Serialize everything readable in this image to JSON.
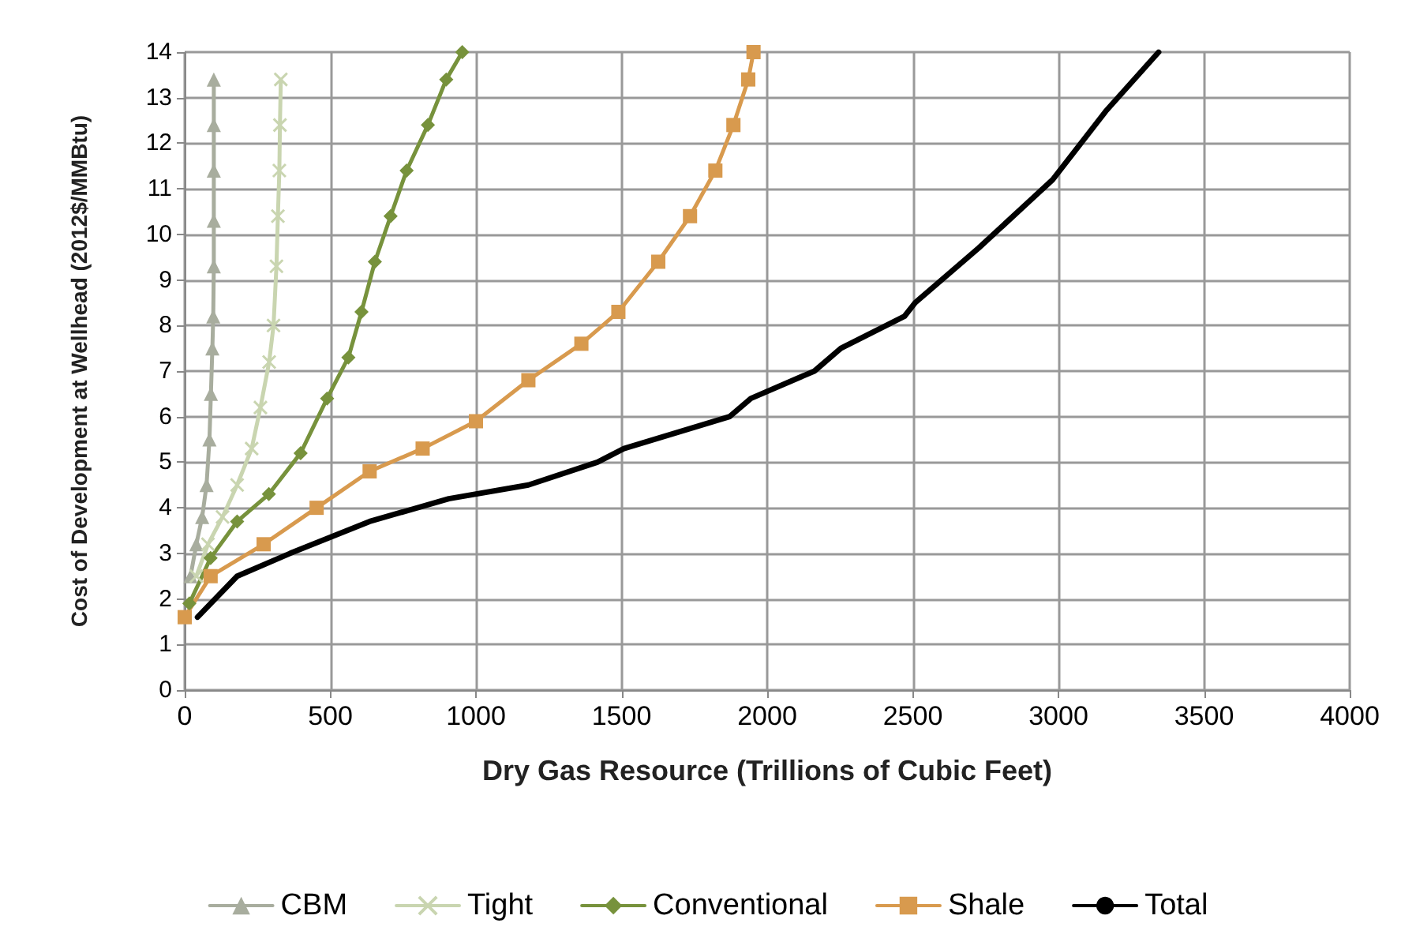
{
  "chart_data": {
    "type": "line",
    "xlabel": "Dry Gas Resource (Trillions of Cubic Feet)",
    "ylabel": "Cost of Development at Wellhead (2012$/MMBtu)",
    "xlim": [
      0,
      4000
    ],
    "ylim": [
      0,
      14
    ],
    "xticks": [
      0,
      500,
      1000,
      1500,
      2000,
      2500,
      3000,
      3500,
      4000
    ],
    "yticks": [
      0,
      1,
      2,
      3,
      4,
      5,
      6,
      7,
      8,
      9,
      10,
      11,
      12,
      13,
      14
    ],
    "grid": true,
    "legend": "bottom",
    "line_style": "solid",
    "series": [
      {
        "name": "CBM",
        "color": "#a8ad9e",
        "marker": "triangle",
        "x": [
          20,
          40,
          60,
          75,
          85,
          90,
          95,
          98,
          100,
          100,
          100,
          100,
          100
        ],
        "values": [
          2.5,
          3.2,
          3.8,
          4.5,
          5.5,
          6.5,
          7.5,
          8.2,
          9.3,
          10.3,
          11.4,
          12.4,
          13.4
        ]
      },
      {
        "name": "Tight",
        "color": "#c9d5b0",
        "marker": "cross",
        "x": [
          40,
          80,
          130,
          180,
          230,
          260,
          290,
          305,
          315,
          320,
          325,
          327,
          330
        ],
        "values": [
          2.5,
          3.2,
          3.8,
          4.5,
          5.3,
          6.2,
          7.2,
          8.0,
          9.3,
          10.4,
          11.4,
          12.4,
          13.4
        ]
      },
      {
        "name": "Conventional",
        "color": "#77923c",
        "marker": "diamond",
        "x": [
          16,
          89,
          180,
          289,
          398,
          489,
          562,
          607,
          653,
          707,
          762,
          835,
          898,
          953
        ],
        "values": [
          1.9,
          2.9,
          3.7,
          4.3,
          5.2,
          6.4,
          7.3,
          8.3,
          9.4,
          10.4,
          11.4,
          12.4,
          13.4,
          14
        ]
      },
      {
        "name": "Shale",
        "color": "#d89a4e",
        "marker": "square",
        "x": [
          0,
          89,
          271,
          453,
          635,
          817,
          1000,
          1180,
          1362,
          1489,
          1626,
          1735,
          1822,
          1884,
          1935,
          1953
        ],
        "values": [
          1.6,
          2.5,
          3.2,
          4.0,
          4.8,
          5.3,
          5.9,
          6.8,
          7.6,
          8.3,
          9.4,
          10.4,
          11.4,
          12.4,
          13.4,
          14
        ]
      },
      {
        "name": "Total",
        "color": "#000000",
        "marker": "none",
        "x": [
          44,
          180,
          362,
          635,
          907,
          1180,
          1417,
          1508,
          1871,
          1944,
          2162,
          2253,
          2471,
          2508,
          2726,
          2980,
          3162,
          3344
        ],
        "values": [
          1.6,
          2.5,
          3.0,
          3.7,
          4.2,
          4.5,
          5.0,
          5.3,
          6.0,
          6.4,
          7.0,
          7.5,
          8.2,
          8.5,
          9.7,
          11.2,
          12.7,
          14
        ]
      }
    ]
  }
}
